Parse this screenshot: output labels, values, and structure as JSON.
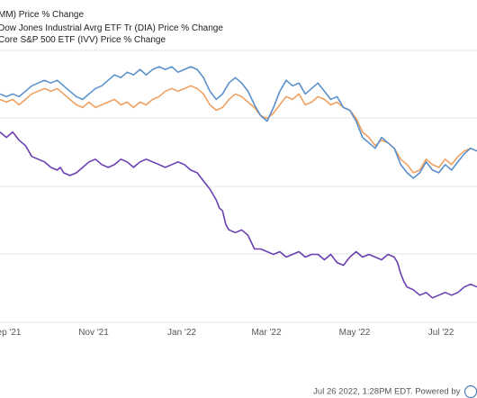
{
  "chart_data": {
    "type": "line",
    "title": "",
    "xlabel": "",
    "ylabel": "",
    "legend_placement": "top-left",
    "grid": true,
    "x_ticks": [
      "ep '21",
      "Nov '21",
      "Jan '22",
      "Mar '22",
      "May '22",
      "Jul '22"
    ],
    "ylim": [
      0,
      100
    ],
    "series": [
      {
        "name": "MM) Price % Change",
        "color": "#6a3fb0",
        "points": [
          [
            0,
            70
          ],
          [
            2,
            68
          ],
          [
            4,
            70
          ],
          [
            6,
            67
          ],
          [
            8,
            65
          ],
          [
            9,
            63
          ],
          [
            10,
            61
          ],
          [
            12,
            60
          ],
          [
            14,
            59
          ],
          [
            16,
            57
          ],
          [
            18,
            56
          ],
          [
            19,
            57
          ],
          [
            20,
            55
          ],
          [
            22,
            54
          ],
          [
            24,
            55
          ],
          [
            26,
            57
          ],
          [
            28,
            59
          ],
          [
            30,
            60
          ],
          [
            32,
            58
          ],
          [
            34,
            57
          ],
          [
            36,
            58
          ],
          [
            38,
            60
          ],
          [
            40,
            59
          ],
          [
            42,
            57
          ],
          [
            44,
            59
          ],
          [
            46,
            60
          ],
          [
            48,
            59
          ],
          [
            50,
            58
          ],
          [
            52,
            57
          ],
          [
            54,
            58
          ],
          [
            56,
            59
          ],
          [
            58,
            58
          ],
          [
            60,
            56
          ],
          [
            62,
            55
          ],
          [
            64,
            52
          ],
          [
            66,
            49
          ],
          [
            68,
            45
          ],
          [
            69,
            42
          ],
          [
            70,
            41
          ],
          [
            71,
            36
          ],
          [
            72,
            34
          ],
          [
            74,
            33
          ],
          [
            76,
            34
          ],
          [
            78,
            32
          ],
          [
            80,
            27
          ],
          [
            82,
            27
          ],
          [
            84,
            26
          ],
          [
            86,
            25
          ],
          [
            88,
            26
          ],
          [
            90,
            24
          ],
          [
            92,
            25
          ],
          [
            94,
            26
          ],
          [
            96,
            24
          ],
          [
            98,
            25
          ],
          [
            100,
            25
          ],
          [
            102,
            23
          ],
          [
            104,
            25
          ],
          [
            106,
            22
          ],
          [
            108,
            21
          ],
          [
            110,
            24
          ],
          [
            112,
            26
          ],
          [
            114,
            24
          ],
          [
            116,
            25
          ],
          [
            118,
            24
          ],
          [
            120,
            23
          ],
          [
            122,
            25
          ],
          [
            124,
            24
          ],
          [
            125,
            22
          ],
          [
            126,
            18
          ],
          [
            127,
            15
          ],
          [
            128,
            13
          ],
          [
            130,
            12
          ],
          [
            132,
            10
          ],
          [
            134,
            11
          ],
          [
            136,
            9
          ],
          [
            138,
            10
          ],
          [
            140,
            11
          ],
          [
            142,
            10
          ],
          [
            144,
            11
          ],
          [
            146,
            13
          ],
          [
            148,
            14
          ],
          [
            150,
            13
          ]
        ]
      },
      {
        "name": "Dow Jones Industrial Avrg ETF Tr (DIA) Price % Change",
        "color": "#f0a060",
        "points": [
          [
            0,
            82
          ],
          [
            2,
            81
          ],
          [
            4,
            82
          ],
          [
            6,
            80
          ],
          [
            8,
            82
          ],
          [
            10,
            84
          ],
          [
            12,
            85
          ],
          [
            14,
            86
          ],
          [
            16,
            85
          ],
          [
            18,
            86
          ],
          [
            20,
            84
          ],
          [
            22,
            82
          ],
          [
            24,
            80
          ],
          [
            26,
            79
          ],
          [
            28,
            81
          ],
          [
            30,
            79
          ],
          [
            32,
            80
          ],
          [
            34,
            81
          ],
          [
            36,
            82
          ],
          [
            38,
            80
          ],
          [
            40,
            81
          ],
          [
            42,
            79
          ],
          [
            44,
            81
          ],
          [
            46,
            80
          ],
          [
            48,
            82
          ],
          [
            50,
            83
          ],
          [
            52,
            85
          ],
          [
            54,
            86
          ],
          [
            56,
            85
          ],
          [
            58,
            86
          ],
          [
            60,
            87
          ],
          [
            62,
            86
          ],
          [
            64,
            84
          ],
          [
            66,
            80
          ],
          [
            68,
            78
          ],
          [
            70,
            79
          ],
          [
            72,
            82
          ],
          [
            74,
            84
          ],
          [
            76,
            83
          ],
          [
            78,
            81
          ],
          [
            80,
            79
          ],
          [
            82,
            76
          ],
          [
            84,
            75
          ],
          [
            86,
            77
          ],
          [
            88,
            80
          ],
          [
            90,
            83
          ],
          [
            92,
            82
          ],
          [
            94,
            84
          ],
          [
            96,
            80
          ],
          [
            98,
            81
          ],
          [
            100,
            83
          ],
          [
            102,
            82
          ],
          [
            104,
            80
          ],
          [
            106,
            81
          ],
          [
            108,
            79
          ],
          [
            110,
            78
          ],
          [
            112,
            75
          ],
          [
            114,
            70
          ],
          [
            116,
            68
          ],
          [
            118,
            65
          ],
          [
            120,
            67
          ],
          [
            122,
            66
          ],
          [
            124,
            64
          ],
          [
            125,
            62
          ],
          [
            126,
            60
          ],
          [
            128,
            58
          ],
          [
            130,
            55
          ],
          [
            132,
            56
          ],
          [
            134,
            60
          ],
          [
            136,
            58
          ],
          [
            138,
            57
          ],
          [
            140,
            60
          ],
          [
            142,
            58
          ],
          [
            144,
            61
          ],
          [
            146,
            63
          ],
          [
            148,
            64
          ],
          [
            150,
            63
          ]
        ]
      },
      {
        "name": "Core S&P 500 ETF (IVV) Price % Change",
        "color": "#5a90cc",
        "points": [
          [
            0,
            84
          ],
          [
            2,
            83
          ],
          [
            4,
            84
          ],
          [
            6,
            83
          ],
          [
            8,
            85
          ],
          [
            10,
            87
          ],
          [
            12,
            88
          ],
          [
            14,
            89
          ],
          [
            16,
            88
          ],
          [
            18,
            89
          ],
          [
            20,
            87
          ],
          [
            22,
            85
          ],
          [
            24,
            83
          ],
          [
            26,
            82
          ],
          [
            28,
            84
          ],
          [
            30,
            86
          ],
          [
            32,
            87
          ],
          [
            34,
            89
          ],
          [
            36,
            91
          ],
          [
            38,
            90
          ],
          [
            40,
            92
          ],
          [
            42,
            91
          ],
          [
            44,
            93
          ],
          [
            46,
            91
          ],
          [
            48,
            93
          ],
          [
            50,
            94
          ],
          [
            52,
            93
          ],
          [
            54,
            94
          ],
          [
            56,
            92
          ],
          [
            58,
            93
          ],
          [
            60,
            94
          ],
          [
            62,
            93
          ],
          [
            64,
            90
          ],
          [
            66,
            85
          ],
          [
            68,
            82
          ],
          [
            70,
            84
          ],
          [
            72,
            88
          ],
          [
            74,
            90
          ],
          [
            76,
            88
          ],
          [
            78,
            85
          ],
          [
            80,
            80
          ],
          [
            82,
            76
          ],
          [
            84,
            74
          ],
          [
            86,
            79
          ],
          [
            88,
            85
          ],
          [
            90,
            89
          ],
          [
            92,
            87
          ],
          [
            94,
            88
          ],
          [
            96,
            84
          ],
          [
            98,
            86
          ],
          [
            100,
            88
          ],
          [
            102,
            85
          ],
          [
            104,
            82
          ],
          [
            106,
            83
          ],
          [
            108,
            79
          ],
          [
            110,
            78
          ],
          [
            112,
            74
          ],
          [
            114,
            68
          ],
          [
            116,
            66
          ],
          [
            118,
            64
          ],
          [
            120,
            68
          ],
          [
            122,
            66
          ],
          [
            124,
            64
          ],
          [
            125,
            61
          ],
          [
            126,
            58
          ],
          [
            128,
            55
          ],
          [
            130,
            53
          ],
          [
            132,
            55
          ],
          [
            134,
            59
          ],
          [
            136,
            56
          ],
          [
            138,
            55
          ],
          [
            140,
            58
          ],
          [
            142,
            56
          ],
          [
            144,
            59
          ],
          [
            146,
            62
          ],
          [
            148,
            64
          ],
          [
            150,
            63
          ]
        ]
      }
    ]
  },
  "footer": {
    "timestamp": "Jul 26 2022, 1:28PM EDT.",
    "powered": "Powered by"
  }
}
